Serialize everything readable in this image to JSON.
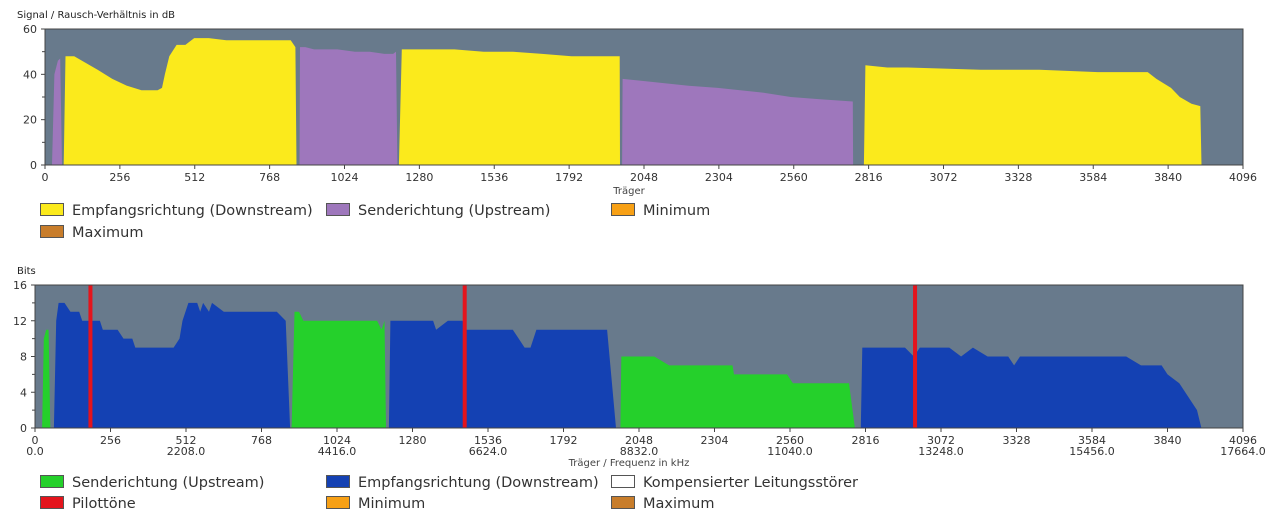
{
  "colors": {
    "plot_bg": "#687a8c",
    "downstream_yellow": "#fbea1c",
    "upstream_purple": "#9e77bc",
    "minimum": "#f7a015",
    "maximum": "#c87d2b",
    "upstream_green": "#25d02b",
    "downstream_blue": "#1441b3",
    "pilot_red": "#e4141c",
    "comp_white": "#ffffff"
  },
  "chart_data": [
    {
      "type": "area",
      "ylabel": "Signal / Rausch-Verhältnis in dB",
      "xlabel": "Träger",
      "xlim": [
        0,
        4096
      ],
      "ylim": [
        0,
        60
      ],
      "x_ticks": [
        "0",
        "256",
        "512",
        "768",
        "1024",
        "1280",
        "1536",
        "1792",
        "2048",
        "2304",
        "2560",
        "2816",
        "3072",
        "3328",
        "3584",
        "3840",
        "4096"
      ],
      "y_ticks": [
        "0",
        "20",
        "40",
        "60"
      ],
      "grid": false,
      "series": [
        {
          "name": "Empfangsrichtung (Downstream)",
          "color": "#fbea1c",
          "segments": [
            [
              [
                64,
                0
              ],
              [
                70,
                48
              ],
              [
                100,
                48
              ],
              [
                140,
                45
              ],
              [
                180,
                42
              ],
              [
                230,
                38
              ],
              [
                280,
                35
              ],
              [
                330,
                33
              ],
              [
                385,
                33
              ],
              [
                400,
                34
              ],
              [
                410,
                40
              ],
              [
                425,
                48
              ],
              [
                450,
                53
              ],
              [
                480,
                53
              ],
              [
                490,
                54
              ],
              [
                510,
                56
              ],
              [
                560,
                56
              ],
              [
                620,
                55
              ],
              [
                720,
                55
              ],
              [
                840,
                55
              ],
              [
                856,
                52
              ],
              [
                860,
                0
              ]
            ],
            [
              [
                1210,
                0
              ],
              [
                1220,
                51
              ],
              [
                1300,
                51
              ],
              [
                1400,
                51
              ],
              [
                1500,
                50
              ],
              [
                1600,
                50
              ],
              [
                1700,
                49
              ],
              [
                1800,
                48
              ],
              [
                1965,
                48
              ],
              [
                1966,
                0
              ]
            ],
            [
              [
                2800,
                0
              ],
              [
                2805,
                44
              ],
              [
                2880,
                43
              ],
              [
                2950,
                43
              ],
              [
                3200,
                42
              ],
              [
                3400,
                42
              ],
              [
                3600,
                41
              ],
              [
                3770,
                41
              ],
              [
                3800,
                38
              ],
              [
                3850,
                34
              ],
              [
                3880,
                30
              ],
              [
                3920,
                27
              ],
              [
                3950,
                26
              ],
              [
                3954,
                0
              ]
            ]
          ]
        },
        {
          "name": "Senderichtung (Upstream)",
          "color": "#9e77bc",
          "segments": [
            [
              [
                24,
                0
              ],
              [
                32,
                40
              ],
              [
                44,
                46
              ],
              [
                52,
                47
              ],
              [
                58,
                0
              ]
            ],
            [
              [
                870,
                0
              ],
              [
                872,
                52
              ],
              [
                890,
                52
              ],
              [
                920,
                51
              ],
              [
                1000,
                51
              ],
              [
                1060,
                50
              ],
              [
                1110,
                50
              ],
              [
                1160,
                49
              ],
              [
                1190,
                49
              ],
              [
                1200,
                50
              ],
              [
                1205,
                0
              ]
            ],
            [
              [
                1973,
                0
              ],
              [
                1975,
                38
              ],
              [
                2050,
                37
              ],
              [
                2200,
                35
              ],
              [
                2300,
                34
              ],
              [
                2450,
                32
              ],
              [
                2550,
                30
              ],
              [
                2650,
                29
              ],
              [
                2762,
                28
              ],
              [
                2763,
                0
              ]
            ]
          ]
        },
        {
          "name": "Minimum",
          "color": "#f7a015",
          "segments": []
        },
        {
          "name": "Maximum",
          "color": "#c87d2b",
          "segments": []
        }
      ]
    },
    {
      "type": "area",
      "ylabel": "Bits",
      "xlabel": "Träger / Frequenz in kHz",
      "xlim": [
        0,
        4096
      ],
      "ylim": [
        0,
        16
      ],
      "x_ticks": [
        "0",
        "256",
        "512",
        "768",
        "1024",
        "1280",
        "1536",
        "1792",
        "2048",
        "2304",
        "2560",
        "2816",
        "3072",
        "3328",
        "3584",
        "3840",
        "4096"
      ],
      "x_ticks_khz": [
        "0.0",
        "",
        "2208.0",
        "",
        "4416.0",
        "",
        "6624.0",
        "",
        "8832.0",
        "",
        "11040.0",
        "",
        "13248.0",
        "",
        "15456.0",
        "",
        "17664.0"
      ],
      "y_ticks": [
        "0",
        "4",
        "8",
        "12",
        "16"
      ],
      "grid": false,
      "series": [
        {
          "name": "Senderichtung (Upstream)",
          "color": "#25d02b",
          "segments": [
            [
              [
                24,
                0
              ],
              [
                30,
                10
              ],
              [
                38,
                11
              ],
              [
                46,
                11
              ],
              [
                52,
                0
              ]
            ],
            [
              [
                870,
                0
              ],
              [
                880,
                13
              ],
              [
                895,
                13
              ],
              [
                910,
                12
              ],
              [
                1000,
                12
              ],
              [
                1100,
                12
              ],
              [
                1140,
                12
              ],
              [
                1160,
                12
              ],
              [
                1175,
                11
              ],
              [
                1185,
                12
              ],
              [
                1190,
                0
              ]
            ],
            [
              [
                1985,
                0
              ],
              [
                1988,
                8
              ],
              [
                2050,
                8
              ],
              [
                2100,
                8
              ],
              [
                2150,
                7
              ],
              [
                2300,
                7
              ],
              [
                2365,
                7
              ],
              [
                2370,
                6
              ],
              [
                2450,
                6
              ],
              [
                2550,
                6
              ],
              [
                2570,
                5
              ],
              [
                2600,
                5
              ],
              [
                2760,
                5
              ],
              [
                2780,
                0
              ]
            ]
          ]
        },
        {
          "name": "Empfangsrichtung (Downstream)",
          "color": "#1441b3",
          "segments": [
            [
              [
                64,
                0
              ],
              [
                72,
                12
              ],
              [
                80,
                14
              ],
              [
                100,
                14
              ],
              [
                120,
                13
              ],
              [
                150,
                13
              ],
              [
                160,
                12
              ],
              [
                180,
                12
              ],
              [
                220,
                12
              ],
              [
                230,
                11
              ],
              [
                280,
                11
              ],
              [
                300,
                10
              ],
              [
                330,
                10
              ],
              [
                340,
                9
              ],
              [
                450,
                9
              ],
              [
                470,
                9
              ],
              [
                490,
                10
              ],
              [
                500,
                12
              ],
              [
                520,
                14
              ],
              [
                550,
                14
              ],
              [
                560,
                13
              ],
              [
                570,
                14
              ],
              [
                590,
                13
              ],
              [
                600,
                14
              ],
              [
                640,
                13
              ],
              [
                700,
                13
              ],
              [
                760,
                13
              ],
              [
                820,
                13
              ],
              [
                850,
                12
              ],
              [
                865,
                0
              ]
            ],
            [
              [
                1200,
                0
              ],
              [
                1205,
                12
              ],
              [
                1300,
                12
              ],
              [
                1350,
                12
              ],
              [
                1360,
                11
              ],
              [
                1400,
                12
              ],
              [
                1450,
                12
              ],
              [
                1460,
                11
              ],
              [
                1500,
                11
              ],
              [
                1620,
                11
              ],
              [
                1640,
                10
              ],
              [
                1660,
                9
              ],
              [
                1680,
                9
              ],
              [
                1700,
                11
              ],
              [
                1800,
                11
              ],
              [
                1900,
                11
              ],
              [
                1940,
                11
              ],
              [
                1970,
                0
              ]
            ],
            [
              [
                2800,
                0
              ],
              [
                2805,
                9
              ],
              [
                2950,
                9
              ],
              [
                2980,
                8
              ],
              [
                3000,
                9
              ],
              [
                3100,
                9
              ],
              [
                3140,
                8
              ],
              [
                3180,
                9
              ],
              [
                3230,
                8
              ],
              [
                3300,
                8
              ],
              [
                3320,
                7
              ],
              [
                3340,
                8
              ],
              [
                3500,
                8
              ],
              [
                3700,
                8
              ],
              [
                3750,
                7
              ],
              [
                3820,
                7
              ],
              [
                3840,
                6
              ],
              [
                3880,
                5
              ],
              [
                3940,
                2
              ],
              [
                3955,
                0
              ]
            ]
          ]
        },
        {
          "name": "Kompensierter Leitungsstörer",
          "color": "#ffffff",
          "segments": []
        },
        {
          "name": "Pilottöne",
          "color": "#e4141c",
          "lines_x": [
            188,
            1457,
            2984
          ]
        },
        {
          "name": "Minimum",
          "color": "#f7a015",
          "segments": []
        },
        {
          "name": "Maximum",
          "color": "#c87d2b",
          "segments": []
        }
      ]
    }
  ],
  "legend1": [
    {
      "label": "Empfangsrichtung (Downstream)",
      "color": "#fbea1c"
    },
    {
      "label": "Senderichtung (Upstream)",
      "color": "#9e77bc"
    },
    {
      "label": "Minimum",
      "color": "#f7a015"
    },
    {
      "label": "Maximum",
      "color": "#c87d2b"
    }
  ],
  "legend2": [
    {
      "label": "Senderichtung (Upstream)",
      "color": "#25d02b"
    },
    {
      "label": "Empfangsrichtung (Downstream)",
      "color": "#1441b3"
    },
    {
      "label": "Kompensierter Leitungsstörer",
      "color": "#ffffff"
    },
    {
      "label": "Pilottöne",
      "color": "#e4141c"
    },
    {
      "label": "Minimum",
      "color": "#f7a015"
    },
    {
      "label": "Maximum",
      "color": "#c87d2b"
    }
  ]
}
